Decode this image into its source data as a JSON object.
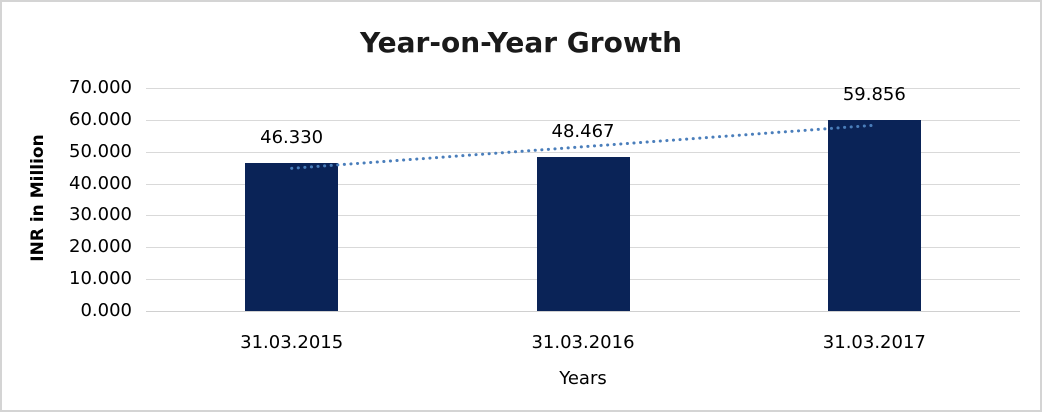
{
  "window": {
    "background": "#ffffff",
    "border_color": "#d4d4d4"
  },
  "chart_data": {
    "type": "bar",
    "title": "Year-on-Year Growth",
    "xlabel": "Years",
    "ylabel": "INR in Million",
    "categories": [
      "31.03.2015",
      "31.03.2016",
      "31.03.2017"
    ],
    "values": [
      46.33,
      48.467,
      59.856
    ],
    "value_labels": [
      "46.330",
      "48.467",
      "59.856"
    ],
    "ylim": [
      0,
      70
    ],
    "ytick_labels": [
      "70.000",
      "60.000",
      "50.000",
      "40.000",
      "30.000",
      "20.000",
      "10.000",
      "0.000"
    ],
    "grid": "horizontal",
    "legend_position": "none",
    "bar_color": "#0a2357",
    "gridline_color": "#d9d9d9",
    "axis_line_color": "#d0d0d0",
    "trendline": {
      "type": "linear",
      "style": "dotted",
      "color": "#4a7ebb"
    }
  }
}
